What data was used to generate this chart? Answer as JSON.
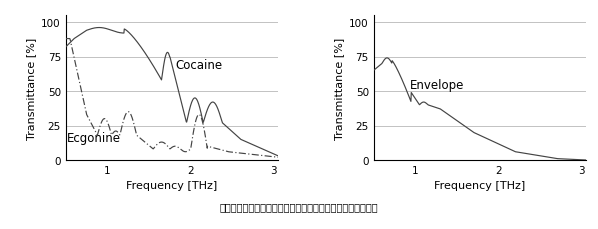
{
  "xlim": [
    0.5,
    3.05
  ],
  "ylim": [
    0,
    105
  ],
  "yticks": [
    0,
    25,
    50,
    75,
    100
  ],
  "xticks_left": [
    1,
    2,
    3
  ],
  "xticks_right": [
    1,
    2,
    3
  ],
  "ylabel": "Transmittance [%]",
  "xlabel": "Frequency [THz]",
  "cocaine_label": "Cocaine",
  "ecgonine_label": "Ecgonine",
  "envelope_label": "Envelope",
  "line_color": "#444444",
  "grid_color": "#aaaaaa",
  "caption_ja": "図６　薬物（左）と封筒（右）のテラヘルツ指紋スペクトル"
}
